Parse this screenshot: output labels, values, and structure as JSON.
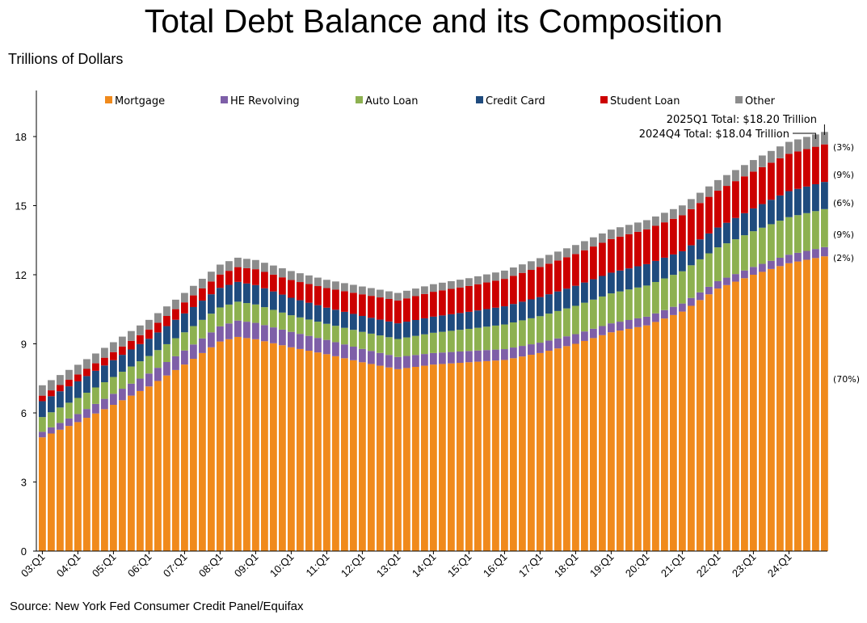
{
  "title": "Total Debt Balance and its Composition",
  "subtitle": "Trillions of Dollars",
  "source": "Source: New York Fed Consumer Credit Panel/Equifax",
  "colors": {
    "Mortgage": "#f08a1c",
    "HE Revolving": "#7e5fa8",
    "Auto Loan": "#8db150",
    "Credit Card": "#1f4b7e",
    "Student Loan": "#cc0000",
    "Other": "#8c8c8c"
  },
  "chart_data": {
    "type": "bar",
    "stacked": true,
    "ylabel": "Trillions of Dollars",
    "ylim": [
      0,
      20
    ],
    "yticks": [
      0,
      3,
      6,
      9,
      12,
      15,
      18
    ],
    "xtick_labels": [
      "03:Q1",
      "04:Q1",
      "05:Q1",
      "06:Q1",
      "07:Q1",
      "08:Q1",
      "09:Q1",
      "10:Q1",
      "11:Q1",
      "12:Q1",
      "13:Q1",
      "14:Q1",
      "15:Q1",
      "16:Q1",
      "17:Q1",
      "18:Q1",
      "19:Q1",
      "20:Q1",
      "21:Q1",
      "22:Q1",
      "23:Q1",
      "24:Q1"
    ],
    "first_quarter": "2003Q1",
    "last_quarter": "2025Q1",
    "quarters_count": 89,
    "legend": [
      "Mortgage",
      "HE Revolving",
      "Auto Loan",
      "Credit Card",
      "Student Loan",
      "Other"
    ],
    "legend_position": "top",
    "anchors": {
      "quarter_index": [
        0,
        4,
        8,
        12,
        16,
        20,
        22,
        24,
        28,
        32,
        36,
        40,
        44,
        48,
        52,
        56,
        60,
        64,
        68,
        72,
        76,
        80,
        84,
        88
      ],
      "Mortgage": [
        4.94,
        5.6,
        6.35,
        7.15,
        8.1,
        9.1,
        9.3,
        9.2,
        8.85,
        8.55,
        8.2,
        7.9,
        8.1,
        8.2,
        8.3,
        8.6,
        9.0,
        9.5,
        9.8,
        10.4,
        11.4,
        12.0,
        12.5,
        12.8
      ],
      "HE Revolving": [
        0.24,
        0.35,
        0.48,
        0.56,
        0.61,
        0.66,
        0.71,
        0.71,
        0.67,
        0.62,
        0.58,
        0.53,
        0.5,
        0.49,
        0.47,
        0.45,
        0.42,
        0.39,
        0.38,
        0.35,
        0.32,
        0.34,
        0.37,
        0.4
      ],
      "Auto Loan": [
        0.64,
        0.7,
        0.73,
        0.76,
        0.79,
        0.82,
        0.82,
        0.8,
        0.72,
        0.7,
        0.74,
        0.78,
        0.88,
        0.96,
        1.07,
        1.15,
        1.23,
        1.3,
        1.35,
        1.4,
        1.47,
        1.55,
        1.63,
        1.65
      ],
      "Credit Card": [
        0.69,
        0.72,
        0.73,
        0.75,
        0.82,
        0.85,
        0.86,
        0.84,
        0.76,
        0.7,
        0.69,
        0.68,
        0.7,
        0.74,
        0.79,
        0.83,
        0.87,
        0.9,
        0.93,
        0.87,
        0.86,
        0.99,
        1.13,
        1.18
      ],
      "Student Loan": [
        0.24,
        0.3,
        0.35,
        0.4,
        0.48,
        0.58,
        0.64,
        0.69,
        0.77,
        0.85,
        0.94,
        0.99,
        1.08,
        1.12,
        1.19,
        1.31,
        1.38,
        1.46,
        1.51,
        1.56,
        1.6,
        1.6,
        1.62,
        1.63
      ]
    },
    "Other_values": [
      0.45,
      0.42,
      0.43,
      0.42,
      0.41,
      0.43,
      0.41,
      0.4,
      0.39,
      0.36,
      0.34,
      0.33,
      0.33,
      0.34,
      0.36,
      0.38,
      0.39,
      0.41,
      0.4,
      0.43,
      0.46,
      0.5,
      0.52,
      0.54
    ],
    "annotations": {
      "total_2025": "2025Q1 Total: $18.20 Trillion",
      "total_2024": "2024Q4 Total: $18.04 Trillion"
    },
    "shares": [
      {
        "label": "(3%)",
        "series": "Other"
      },
      {
        "label": "(9%)",
        "series": "Student Loan"
      },
      {
        "label": "(6%)",
        "series": "Credit Card"
      },
      {
        "label": "(9%)",
        "series": "Auto Loan"
      },
      {
        "label": "(2%)",
        "series": "HE Revolving"
      },
      {
        "label": "(70%)",
        "series": "Mortgage"
      }
    ]
  }
}
